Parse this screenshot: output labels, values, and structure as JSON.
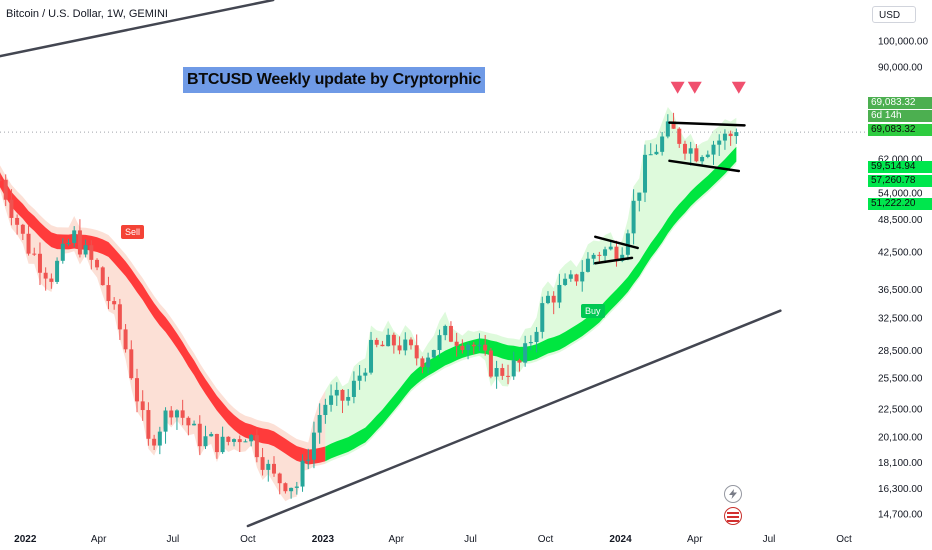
{
  "header": {
    "symbol_label": "Bitcoin / U.S. Dollar, 1W, GEMINI",
    "currency": "USD"
  },
  "annotation": {
    "banner_text": "BTCUSD Weekly update by Cryptorphic",
    "sell_label": "Sell",
    "buy_label": "Buy"
  },
  "price_tags": {
    "last_price": "69,083.32",
    "countdown": "6d 14h",
    "current_price": "69,083.32",
    "level_a": "59,514.94",
    "level_b": "57,260.78",
    "level_c": "51,222.20"
  },
  "colors": {
    "bull": "#26a69a",
    "bear": "#ef5350",
    "ribbon_bull": "#00e640",
    "ribbon_bear": "#ff3b3b",
    "cloud_bull": "#c8f7c5",
    "cloud_bear": "#fbd3c4",
    "arrow": "#f0506e",
    "trendline": "#434651"
  },
  "icons": [
    "lightning-icon",
    "us-flag-icon"
  ],
  "chart_data": {
    "type": "candlestick",
    "scale": "log",
    "x_ticks": [
      "2022",
      "Apr",
      "Jul",
      "Oct",
      "2023",
      "Apr",
      "Jul",
      "Oct",
      "2024",
      "Apr",
      "Jul",
      "Oct"
    ],
    "y_ticks": [
      "100,000.00",
      "90,000.00",
      "69,083.32",
      "62,000.00",
      "54,000.00",
      "48,500.00",
      "42,500.00",
      "36,500.00",
      "32,500.00",
      "28,500.00",
      "25,500.00",
      "22,500.00",
      "20,100.00",
      "18,100.00",
      "16,300.00",
      "14,700.00"
    ],
    "y_tick_values": [
      100000,
      90000,
      69083.32,
      62000,
      54000,
      48500,
      42500,
      36500,
      32500,
      28500,
      25500,
      22500,
      20100,
      18100,
      16300,
      14700
    ],
    "y_range": [
      14000,
      118000
    ],
    "x_range": [
      "2021-12-01",
      "2024-10-28"
    ],
    "x_tick_dates": [
      "2022-01-01",
      "2022-04-01",
      "2022-07-01",
      "2022-10-01",
      "2023-01-01",
      "2023-04-01",
      "2023-07-01",
      "2023-10-01",
      "2024-01-01",
      "2024-04-01",
      "2024-07-01",
      "2024-10-01"
    ],
    "candle_interval": "1W",
    "last_price": 69083.32,
    "close_series": {
      "date": [
        "2021-12-01",
        "2022-01-01",
        "2022-02-01",
        "2022-03-01",
        "2022-04-01",
        "2022-05-01",
        "2022-06-01",
        "2022-07-01",
        "2022-08-01",
        "2022-09-01",
        "2022-10-01",
        "2022-11-01",
        "2022-12-01",
        "2023-01-01",
        "2023-02-01",
        "2023-03-01",
        "2023-04-01",
        "2023-05-01",
        "2023-06-01",
        "2023-07-01",
        "2023-08-01",
        "2023-09-01",
        "2023-10-01",
        "2023-11-01",
        "2023-12-01",
        "2024-01-01",
        "2024-02-01",
        "2024-03-01",
        "2024-04-01",
        "2024-05-01",
        "2024-05-25"
      ],
      "close": [
        57000,
        44000,
        38500,
        45500,
        39000,
        30000,
        19500,
        23000,
        20000,
        19500,
        20500,
        17000,
        16500,
        23000,
        23500,
        28500,
        29500,
        27500,
        30500,
        29500,
        26000,
        27000,
        35000,
        37500,
        42500,
        43000,
        61000,
        70000,
        63500,
        67000,
        69083.32
      ]
    },
    "trendlines": [
      {
        "name": "upper-channel",
        "points": [
          [
            "2021-12-01",
            94000
          ],
          [
            "2022-11-01",
            118000
          ]
        ]
      },
      {
        "name": "lower-channel",
        "points": [
          [
            "2022-10-01",
            14000
          ],
          [
            "2024-07-15",
            33500
          ]
        ]
      },
      {
        "name": "flag-1-upper",
        "points": [
          [
            "2023-12-01",
            45200
          ],
          [
            "2024-01-22",
            43200
          ]
        ]
      },
      {
        "name": "flag-1-lower",
        "points": [
          [
            "2023-12-01",
            40600
          ],
          [
            "2024-01-15",
            41500
          ]
        ]
      },
      {
        "name": "flag-2-upper",
        "points": [
          [
            "2024-03-01",
            71800
          ],
          [
            "2024-06-01",
            71000
          ]
        ]
      },
      {
        "name": "flag-2-lower",
        "points": [
          [
            "2024-03-01",
            61500
          ],
          [
            "2024-05-25",
            59000
          ]
        ]
      }
    ],
    "top_markers": [
      "2024-03-11",
      "2024-04-01",
      "2024-05-25"
    ]
  }
}
